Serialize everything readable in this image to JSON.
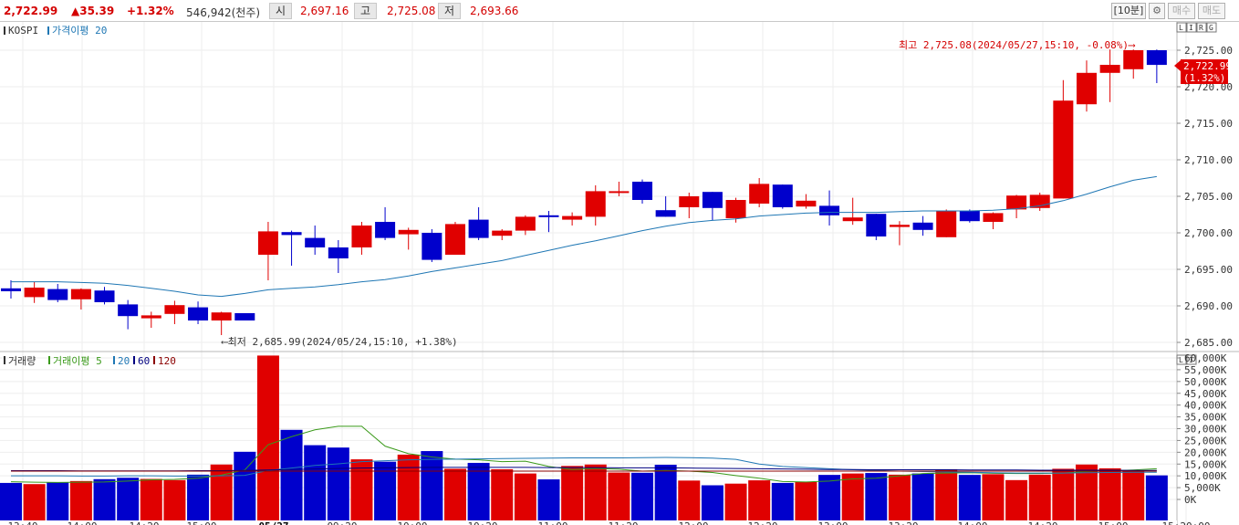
{
  "header": {
    "price": "2,722.99",
    "change": "▲35.39",
    "change_pct": "+1.32%",
    "volume": "546,942(천주)",
    "open_label": "시",
    "open": "2,697.16",
    "high_label": "고",
    "high": "2,725.08",
    "low_label": "저",
    "low": "2,693.66",
    "interval": "[10분]",
    "settings_icon": "gear-icon",
    "buy_label": "매수",
    "sell_label": "매도"
  },
  "price_panel": {
    "title": "KOSPI",
    "ma_label": "가격이평 20",
    "badges": [
      "L",
      "I",
      "R",
      "G"
    ],
    "current_label": "2,722.99",
    "current_pct": "(1.32%)",
    "high_annotation": "최고 2,725.08(2024/05/27,15:10, -0.08%)⟶",
    "low_annotation": "⟵최저 2,685.99(2024/05/24,15:10, +1.38%)"
  },
  "volume_panel": {
    "title": "거래량",
    "ma5_label": "거래이평 5",
    "ma20_label": "20",
    "ma60_label": "60",
    "ma120_label": "120",
    "badges": [
      "L",
      "I"
    ]
  },
  "x_tick_labels": [
    "13:40",
    "14:00",
    "14:20",
    "15:00",
    "05/27",
    "09:20",
    "10:00",
    "10:20",
    "11:00",
    "11:20",
    "12:00",
    "12:20",
    "13:00",
    "13:20",
    "14:00",
    "14:20",
    "15:00",
    "15:20:00"
  ],
  "colors": {
    "up": "#e00000",
    "down": "#0000cc",
    "ma20": "#1f77b4",
    "vol_ma5": "#3a9a1a",
    "vol_ma20": "#1f77b4",
    "vol_ma60": "#000080",
    "vol_ma120": "#8b0000",
    "grid": "#eeeeee"
  },
  "chart_data": [
    {
      "type": "candlestick",
      "title": "KOSPI",
      "ylim": [
        2684,
        2730
      ],
      "y_ticks": [
        2685,
        2690,
        2695,
        2700,
        2705,
        2710,
        2715,
        2720,
        2725
      ],
      "y_tick_labels": [
        "2,685.00",
        "2,690.00",
        "2,695.00",
        "2,700.00",
        "2,705.00",
        "2,710.00",
        "2,715.00",
        "2,720.00",
        "2,725.00"
      ],
      "candles": [
        {
          "o": 2692.4,
          "h": 2693.5,
          "l": 2691.0,
          "c": 2692.0
        },
        {
          "o": 2691.2,
          "h": 2693.3,
          "l": 2690.4,
          "c": 2692.5
        },
        {
          "o": 2692.3,
          "h": 2693.0,
          "l": 2690.5,
          "c": 2690.8
        },
        {
          "o": 2690.9,
          "h": 2692.4,
          "l": 2689.5,
          "c": 2692.3
        },
        {
          "o": 2692.1,
          "h": 2692.6,
          "l": 2690.2,
          "c": 2690.5
        },
        {
          "o": 2690.2,
          "h": 2690.8,
          "l": 2686.8,
          "c": 2688.6
        },
        {
          "o": 2688.3,
          "h": 2689.2,
          "l": 2687.0,
          "c": 2688.7
        },
        {
          "o": 2688.9,
          "h": 2690.7,
          "l": 2687.5,
          "c": 2690.1
        },
        {
          "o": 2689.8,
          "h": 2690.6,
          "l": 2687.5,
          "c": 2688.0
        },
        {
          "o": 2688.0,
          "h": 2689.2,
          "l": 2686.0,
          "c": 2689.1
        },
        {
          "o": 2689.0,
          "h": 2689.0,
          "l": 2688.0,
          "c": 2688.0
        },
        {
          "o": 2697.0,
          "h": 2701.5,
          "l": 2693.5,
          "c": 2700.2
        },
        {
          "o": 2700.1,
          "h": 2700.3,
          "l": 2695.5,
          "c": 2699.7
        },
        {
          "o": 2699.3,
          "h": 2701.0,
          "l": 2697.0,
          "c": 2698.0
        },
        {
          "o": 2698.0,
          "h": 2699.0,
          "l": 2694.5,
          "c": 2696.5
        },
        {
          "o": 2698.0,
          "h": 2701.5,
          "l": 2697.0,
          "c": 2701.0
        },
        {
          "o": 2701.5,
          "h": 2703.5,
          "l": 2699.0,
          "c": 2699.3
        },
        {
          "o": 2699.8,
          "h": 2700.7,
          "l": 2697.7,
          "c": 2700.4
        },
        {
          "o": 2700.0,
          "h": 2700.5,
          "l": 2696.0,
          "c": 2696.3
        },
        {
          "o": 2697.0,
          "h": 2701.5,
          "l": 2697.0,
          "c": 2701.2
        },
        {
          "o": 2701.8,
          "h": 2703.5,
          "l": 2699.0,
          "c": 2699.3
        },
        {
          "o": 2699.6,
          "h": 2700.5,
          "l": 2699.0,
          "c": 2700.3
        },
        {
          "o": 2700.3,
          "h": 2702.4,
          "l": 2699.7,
          "c": 2702.2
        },
        {
          "o": 2702.4,
          "h": 2703.0,
          "l": 2700.1,
          "c": 2702.3
        },
        {
          "o": 2701.8,
          "h": 2702.8,
          "l": 2701.0,
          "c": 2702.3
        },
        {
          "o": 2702.2,
          "h": 2706.5,
          "l": 2701.0,
          "c": 2705.7
        },
        {
          "o": 2705.5,
          "h": 2707.0,
          "l": 2705.0,
          "c": 2705.7
        },
        {
          "o": 2707.0,
          "h": 2707.3,
          "l": 2704.0,
          "c": 2704.5
        },
        {
          "o": 2703.1,
          "h": 2705.0,
          "l": 2702.2,
          "c": 2702.2
        },
        {
          "o": 2703.5,
          "h": 2705.5,
          "l": 2702.0,
          "c": 2705.0
        },
        {
          "o": 2705.6,
          "h": 2705.6,
          "l": 2701.7,
          "c": 2703.4
        },
        {
          "o": 2702.0,
          "h": 2704.8,
          "l": 2701.4,
          "c": 2704.5
        },
        {
          "o": 2704.0,
          "h": 2707.5,
          "l": 2703.5,
          "c": 2706.7
        },
        {
          "o": 2706.6,
          "h": 2706.6,
          "l": 2703.3,
          "c": 2703.5
        },
        {
          "o": 2703.6,
          "h": 2705.3,
          "l": 2703.3,
          "c": 2704.4
        },
        {
          "o": 2703.7,
          "h": 2705.8,
          "l": 2701.0,
          "c": 2702.4
        },
        {
          "o": 2701.6,
          "h": 2704.8,
          "l": 2701.1,
          "c": 2702.1
        },
        {
          "o": 2702.6,
          "h": 2702.6,
          "l": 2699.0,
          "c": 2699.5
        },
        {
          "o": 2700.8,
          "h": 2701.6,
          "l": 2698.3,
          "c": 2701.1
        },
        {
          "o": 2701.4,
          "h": 2702.3,
          "l": 2699.6,
          "c": 2700.4
        },
        {
          "o": 2699.4,
          "h": 2703.2,
          "l": 2699.4,
          "c": 2703.0
        },
        {
          "o": 2703.0,
          "h": 2703.2,
          "l": 2701.4,
          "c": 2701.6
        },
        {
          "o": 2701.5,
          "h": 2702.8,
          "l": 2700.5,
          "c": 2702.7
        },
        {
          "o": 2703.2,
          "h": 2705.2,
          "l": 2702.0,
          "c": 2705.1
        },
        {
          "o": 2703.4,
          "h": 2705.5,
          "l": 2703.0,
          "c": 2705.2
        },
        {
          "o": 2704.7,
          "h": 2720.9,
          "l": 2704.7,
          "c": 2718.1
        },
        {
          "o": 2717.6,
          "h": 2723.6,
          "l": 2716.6,
          "c": 2721.9
        },
        {
          "o": 2721.9,
          "h": 2725.1,
          "l": 2717.9,
          "c": 2723.0
        },
        {
          "o": 2722.4,
          "h": 2725.1,
          "l": 2721.1,
          "c": 2725.0
        },
        {
          "o": 2725.0,
          "h": 2725.1,
          "l": 2720.5,
          "c": 2722.99
        }
      ],
      "ma20": [
        2693.3,
        2693.3,
        2693.3,
        2693.2,
        2693.1,
        2692.8,
        2692.4,
        2692.0,
        2691.5,
        2691.3,
        2691.7,
        2692.2,
        2692.4,
        2692.6,
        2692.9,
        2693.3,
        2693.6,
        2694.1,
        2694.7,
        2695.2,
        2695.7,
        2696.2,
        2696.9,
        2697.6,
        2698.3,
        2698.9,
        2699.6,
        2700.3,
        2700.9,
        2701.4,
        2701.7,
        2701.9,
        2702.3,
        2702.5,
        2702.7,
        2702.8,
        2702.8,
        2702.8,
        2702.9,
        2703.0,
        2703.0,
        2703.0,
        2703.1,
        2703.3,
        2703.7,
        2704.4,
        2705.3,
        2706.3,
        2707.2,
        2707.7
      ]
    },
    {
      "type": "bar",
      "title": "거래량",
      "ylim": [
        0,
        62000
      ],
      "y_ticks": [
        0,
        5000,
        10000,
        15000,
        20000,
        25000,
        30000,
        35000,
        40000,
        45000,
        50000,
        55000,
        60000
      ],
      "y_tick_labels": [
        "0K",
        "5,000K",
        "10,000K",
        "15,000K",
        "20,000K",
        "25,000K",
        "30,000K",
        "35,000K",
        "40,000K",
        "45,000K",
        "50,000K",
        "55,000K",
        "60,000K"
      ],
      "values": [
        7000,
        6500,
        7200,
        7800,
        8600,
        9200,
        8700,
        8200,
        10500,
        14800,
        20200,
        61000,
        29500,
        23000,
        22000,
        17000,
        16000,
        19000,
        20500,
        13000,
        15500,
        12800,
        11000,
        8500,
        14200,
        14800,
        11400,
        11300,
        14700,
        8000,
        6000,
        6700,
        8100,
        7000,
        7400,
        10400,
        11000,
        11200,
        10500,
        11000,
        12800,
        10400,
        10700,
        8200,
        10500,
        13000,
        14800,
        13200,
        12000,
        10200
      ],
      "series": [
        {
          "name": "5",
          "values": [
            7500,
            7300,
            7200,
            7300,
            7400,
            7800,
            8300,
            8500,
            9000,
            10300,
            12500,
            23200,
            26600,
            29500,
            31000,
            31000,
            22600,
            19400,
            18000,
            17100,
            16800,
            16000,
            16200,
            14000,
            12700,
            13100,
            12800,
            12000,
            12300,
            12000,
            11400,
            10100,
            9000,
            7600,
            7400,
            7800,
            8700,
            9000,
            10000,
            11000,
            11200,
            11300,
            11100,
            11000,
            11000,
            11200,
            11800,
            12100,
            12500,
            13000
          ]
        },
        {
          "name": "20",
          "values": [
            10000,
            10000,
            10000,
            9900,
            9900,
            10000,
            10000,
            9900,
            9900,
            10000,
            10200,
            12300,
            13300,
            14400,
            15100,
            16000,
            16400,
            16800,
            17000,
            17100,
            17200,
            17300,
            17400,
            17500,
            17600,
            17600,
            17600,
            17700,
            17800,
            17700,
            17500,
            17000,
            15000,
            14000,
            13500,
            13000,
            12600,
            12300,
            12000,
            11800,
            11600,
            11500,
            11300,
            11200,
            11200,
            11200,
            11300,
            11400,
            11500,
            11500
          ]
        },
        {
          "name": "60",
          "values": [
            12200,
            12200,
            12200,
            12100,
            12100,
            12100,
            12100,
            12100,
            12200,
            12200,
            12300,
            12500,
            12700,
            12900,
            13100,
            13300,
            13400,
            13500,
            13600,
            13600,
            13600,
            13600,
            13600,
            13500,
            13500,
            13500,
            13400,
            13400,
            13400,
            13300,
            13200,
            13100,
            13000,
            12900,
            12800,
            12700,
            12700,
            12600,
            12600,
            12600,
            12600,
            12500,
            12500,
            12500,
            12400,
            12400,
            12400,
            12400,
            12300,
            12300
          ]
        },
        {
          "name": "120",
          "values": [
            12000,
            12000,
            12000,
            12000,
            12000,
            12000,
            12000,
            12000,
            12000,
            12000,
            12000,
            12000,
            12000,
            12000,
            12000,
            12000,
            12000,
            12000,
            12000,
            12000,
            12000,
            12000,
            12000,
            12000,
            12000,
            12000,
            12000,
            12000,
            12000,
            12000,
            12000,
            12000,
            12000,
            12000,
            12000,
            12000,
            12000,
            12000,
            12000,
            12000,
            12000,
            12000,
            12000,
            12000,
            12000,
            12000,
            12000,
            12000,
            12000,
            12000
          ]
        }
      ]
    }
  ]
}
